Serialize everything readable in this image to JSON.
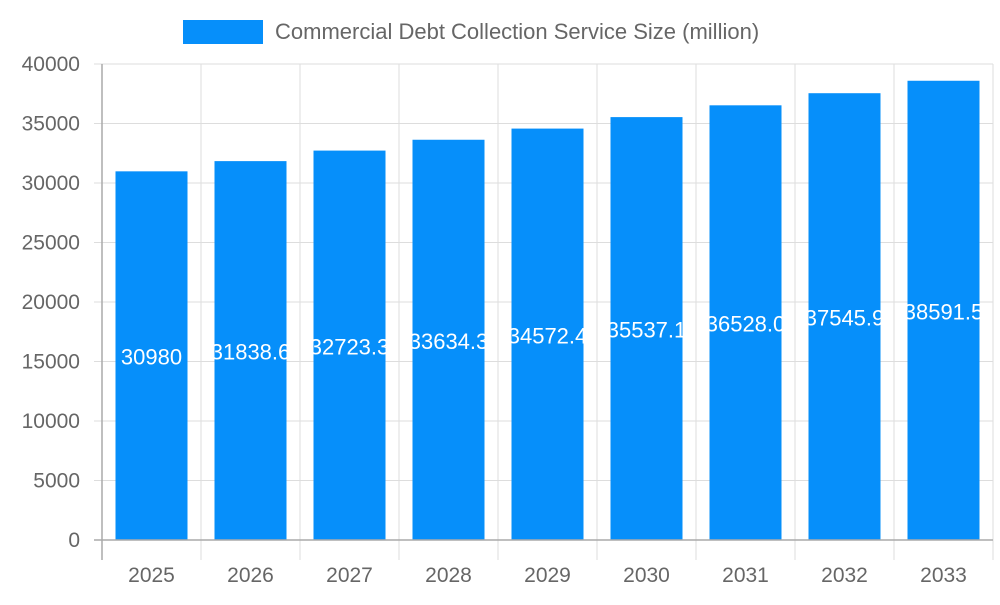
{
  "chart_data": {
    "type": "bar",
    "title": "",
    "xlabel": "",
    "ylabel": "",
    "categories": [
      "2025",
      "2026",
      "2027",
      "2028",
      "2029",
      "2030",
      "2031",
      "2032",
      "2033"
    ],
    "series": [
      {
        "name": "Commercial Debt Collection Service Size (million)",
        "values": [
          30980,
          31838.6,
          32723.3,
          33634.3,
          34572.4,
          35537.1,
          36528.0,
          37545.9,
          38591.5
        ],
        "labels": [
          "30980",
          "31838.6",
          "32723.3",
          "33634.3",
          "34572.4",
          "35537.1",
          "36528.0",
          "37545.9",
          "38591.5"
        ]
      }
    ],
    "ylim": [
      0,
      40000
    ],
    "yticks": [
      "0",
      "5000",
      "10000",
      "15000",
      "20000",
      "25000",
      "30000",
      "35000",
      "40000"
    ],
    "grid": true,
    "legend": "top-center",
    "colors": {
      "bar": "#068ffa",
      "grid": "#dddddd",
      "axis": "#aaaaaa",
      "text": "#666666",
      "label": "#ffffff"
    }
  }
}
